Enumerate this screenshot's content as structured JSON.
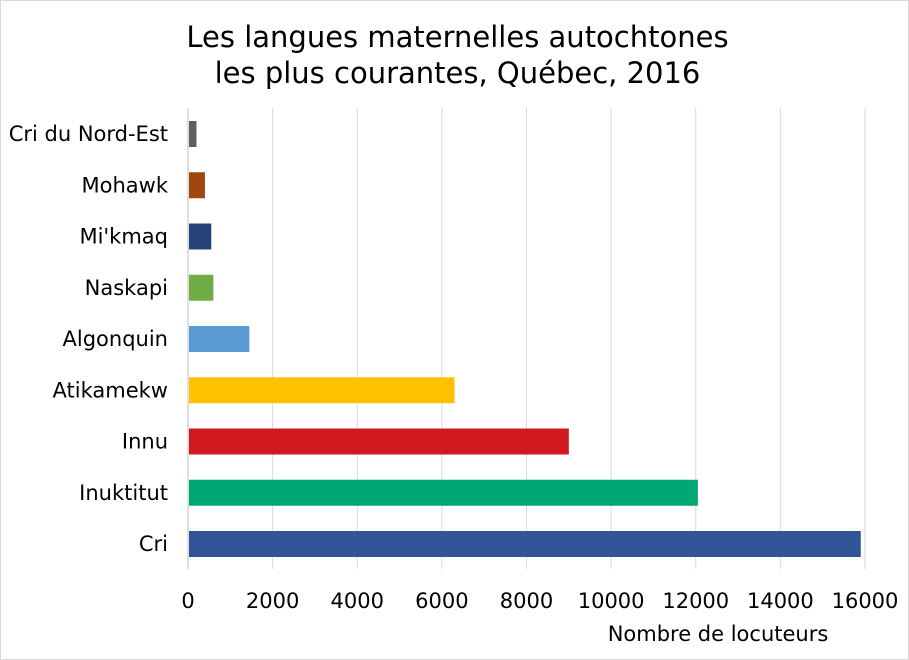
{
  "chart_data": {
    "type": "bar",
    "orientation": "horizontal",
    "title_lines": [
      "Les langues maternelles autochtones",
      "les plus courantes, Québec, 2016"
    ],
    "xlabel": "Nombre de locuteurs",
    "ylabel": "",
    "xlim": [
      0,
      16000
    ],
    "x_ticks": [
      0,
      2000,
      4000,
      6000,
      8000,
      10000,
      12000,
      14000,
      16000
    ],
    "grid": true,
    "legend": "none",
    "categories": [
      "Cri du Nord-Est",
      "Mohawk",
      "Mi'kmaq",
      "Naskapi",
      "Algonquin",
      "Atikamekw",
      "Innu",
      "Inuktitut",
      "Cri"
    ],
    "values": [
      200,
      400,
      550,
      600,
      1450,
      6300,
      9000,
      12050,
      15900
    ],
    "colors": [
      "#5f5f5f",
      "#9e480e",
      "#264478",
      "#70ad47",
      "#5b9bd5",
      "#ffc000",
      "#d0181f",
      "#00a875",
      "#2f5597"
    ]
  }
}
